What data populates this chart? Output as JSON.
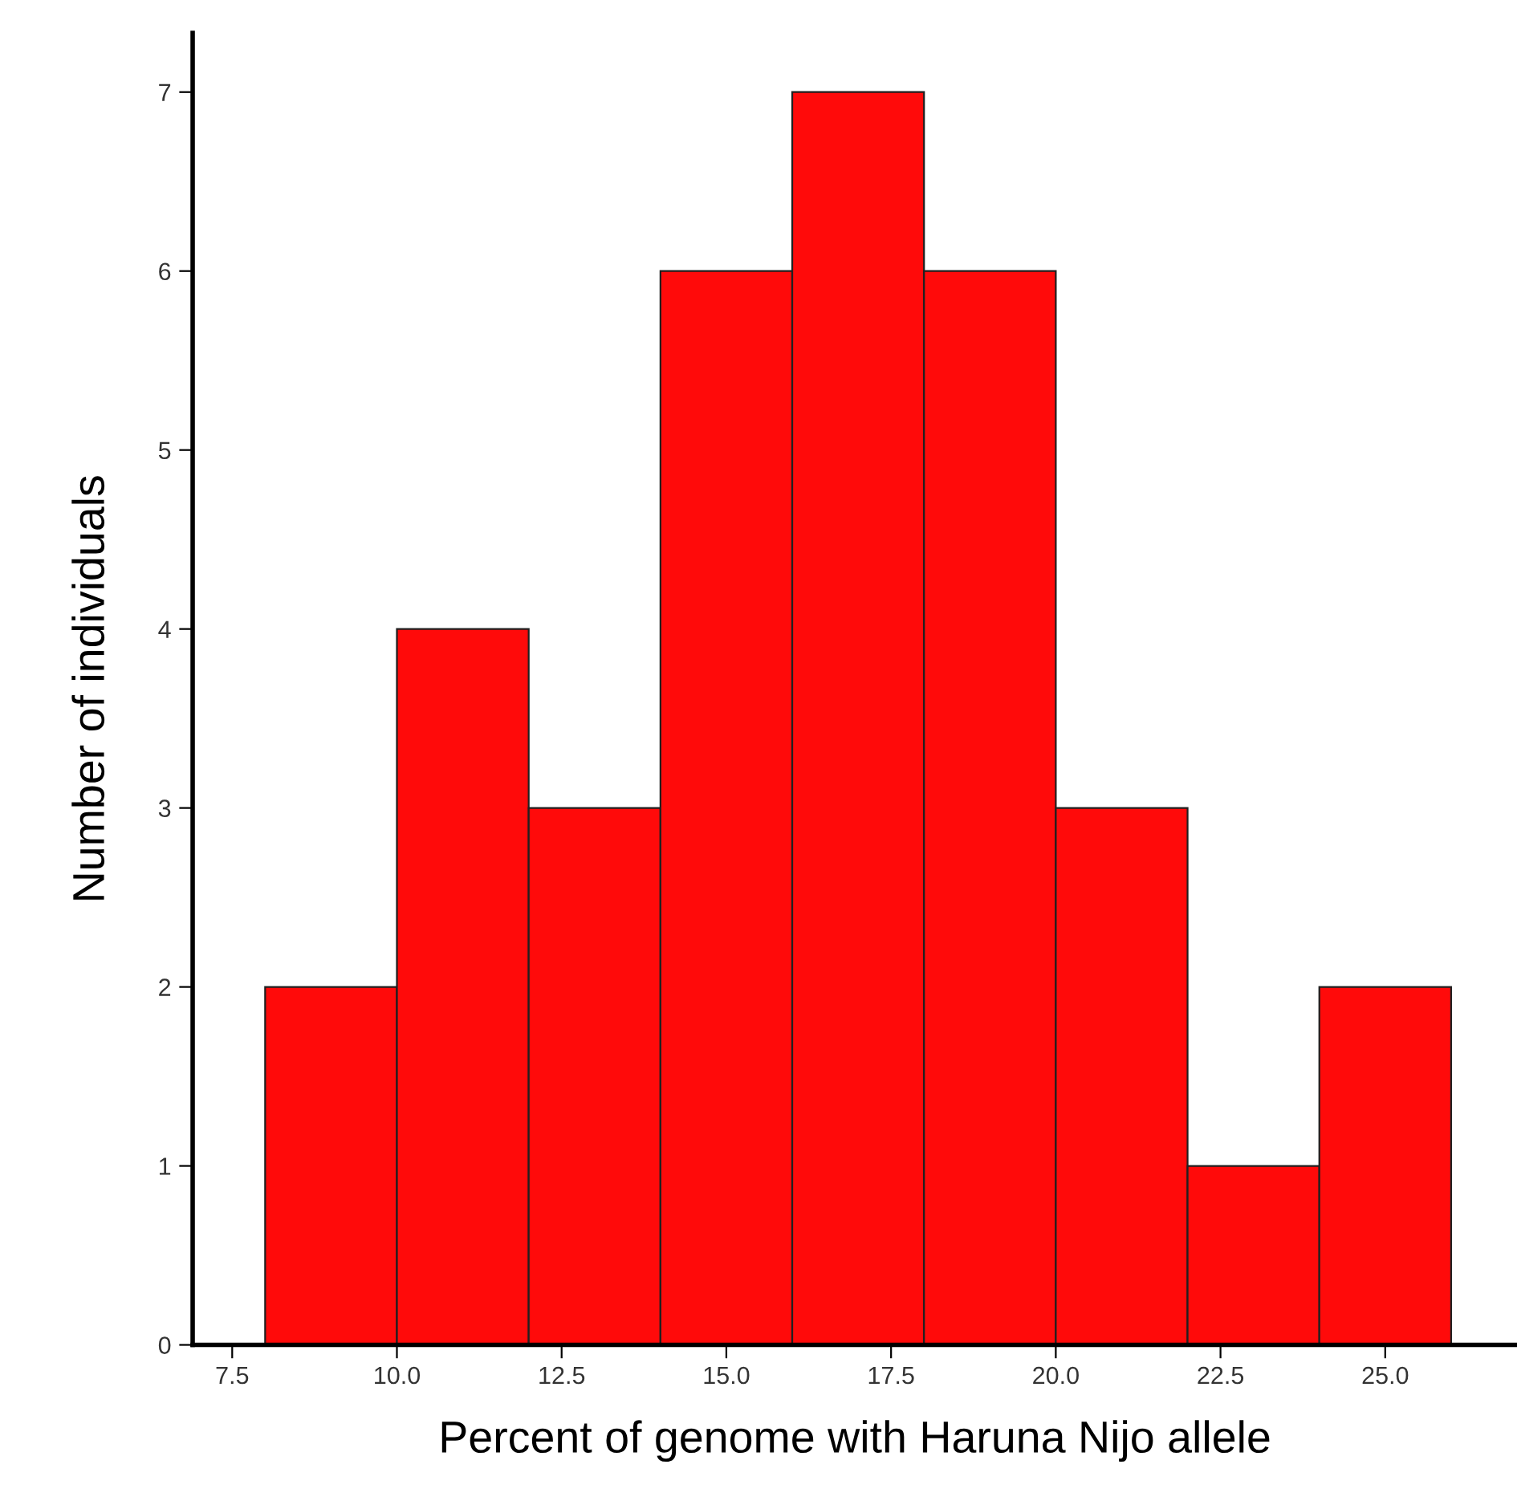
{
  "chart_data": {
    "type": "histogram",
    "xlabel": "Percent of genome with Haruna Nijo allele",
    "ylabel": "Number of individuals",
    "bins": [
      8,
      10,
      12,
      14,
      16,
      18,
      20,
      22,
      24,
      26
    ],
    "values": [
      2,
      4,
      3,
      6,
      7,
      6,
      3,
      1,
      2
    ],
    "color": "#ff0a0a",
    "xlim": [
      6.9,
      27.0
    ],
    "ylim": [
      0,
      7.33
    ],
    "xticks": [
      {
        "value": 7.5,
        "label": "7.5"
      },
      {
        "value": 10,
        "label": "10.0"
      },
      {
        "value": 12.5,
        "label": "12.5"
      },
      {
        "value": 15,
        "label": "15.0"
      },
      {
        "value": 17.5,
        "label": "17.5"
      },
      {
        "value": 20,
        "label": "20.0"
      },
      {
        "value": 22.5,
        "label": "22.5"
      },
      {
        "value": 25,
        "label": "25.0"
      }
    ],
    "yticks": [
      0,
      1,
      2,
      3,
      4,
      5,
      6,
      7
    ],
    "grid": false
  }
}
